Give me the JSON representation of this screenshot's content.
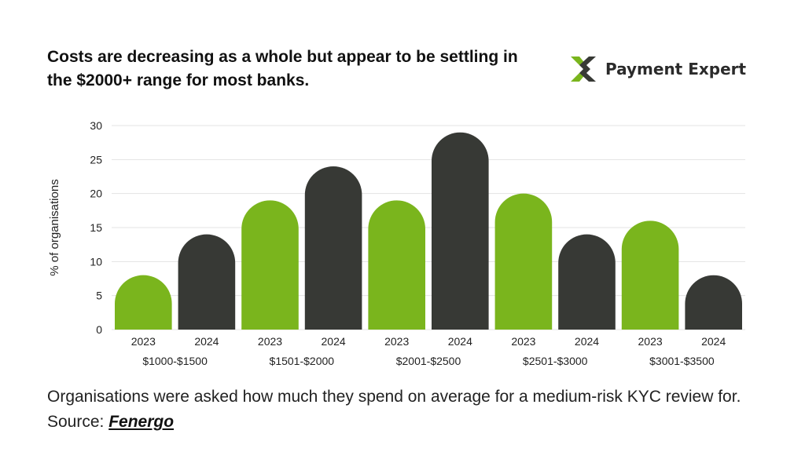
{
  "title": "Costs are decreasing as a whole but appear to be settling in the $2000+ range for most banks.",
  "brand": {
    "name": "Payment Expert",
    "logo_icon": "payment-expert-x-logo",
    "green": "#7ab51d",
    "dark": "#373935"
  },
  "caption": {
    "text": "Organisations were asked how much they spend on average for a medium-risk KYC review for. Source: ",
    "source_link": "Fenergo"
  },
  "chart_data": {
    "type": "bar",
    "title": "",
    "ylabel": "% of organisations",
    "xlabel": "",
    "ylim": [
      0,
      30
    ],
    "yticks": [
      0,
      5,
      10,
      15,
      20,
      25,
      30
    ],
    "grid": true,
    "groups": [
      "$1000-$1500",
      "$1501-$2000",
      "$2001-$2500",
      "$2501-$3000",
      "$3001-$3500"
    ],
    "series": [
      {
        "name": "2023",
        "color": "#7ab51d",
        "values": [
          8,
          19,
          19,
          20,
          16
        ]
      },
      {
        "name": "2024",
        "color": "#373935",
        "values": [
          14,
          24,
          29,
          14,
          8
        ]
      }
    ]
  }
}
